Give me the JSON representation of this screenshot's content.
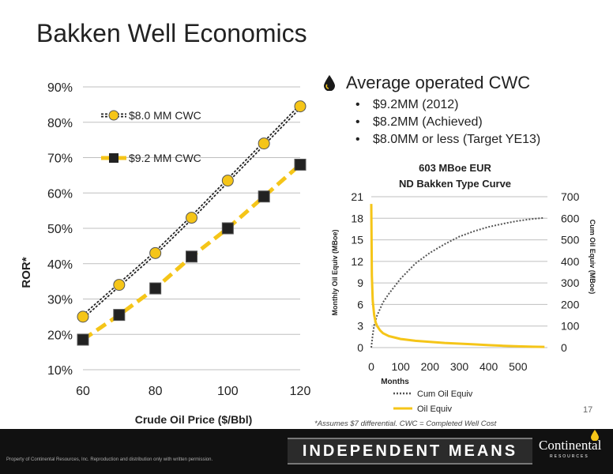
{
  "slide": {
    "title": "Bakken Well Economics",
    "page_number": "17",
    "footnote": "*Assumes $7 differential.  CWC = Completed Well Cost",
    "footer_banner": "INDEPENDENT MEANS",
    "copyright": "Property of Continental Resources, Inc. Reproduction and distribution only with written permission.",
    "logo_name": "Continental",
    "logo_sub": "RESOURCES"
  },
  "bullets": {
    "main": "Average operated CWC",
    "items": [
      "$9.2MM (2012)",
      "$8.2MM (Achieved)",
      "$8.0MM or less (Target YE13)"
    ]
  },
  "colors": {
    "accent": "#F5C518",
    "dark_series": "#222222",
    "grid": "#BFBFBF"
  },
  "chart_data": [
    {
      "type": "line",
      "title": "",
      "xlabel": "Crude Oil Price ($/Bbl)",
      "ylabel": "ROR*",
      "x": [
        60,
        70,
        80,
        90,
        100,
        110,
        120
      ],
      "xlim": [
        60,
        120
      ],
      "xticks": [
        "60",
        "80",
        "100",
        "120"
      ],
      "ylim": [
        10,
        90
      ],
      "yticks": [
        "10%",
        "20%",
        "30%",
        "40%",
        "50%",
        "60%",
        "70%",
        "80%",
        "90%"
      ],
      "grid": true,
      "legend_placement": "top-left",
      "series": [
        {
          "name": "$8.0 MM CWC",
          "values": [
            25,
            34,
            43,
            53,
            63.5,
            74,
            84.5
          ]
        },
        {
          "name": "$9.2 MM CWC",
          "values": [
            18.5,
            25.5,
            33,
            42,
            50,
            59,
            68
          ]
        }
      ]
    },
    {
      "type": "line",
      "title": "603 MBoe EUR",
      "subtitle": "ND Bakken Type Curve",
      "xlabel": "Months",
      "ylabel": "Monthly Oil Equiv (MBoe)",
      "y2label": "Cum Oil Equiv (MBoe)",
      "xlim": [
        0,
        600
      ],
      "xticks": [
        "0",
        "100",
        "200",
        "300",
        "400",
        "500"
      ],
      "ylim": [
        0,
        21
      ],
      "yticks": [
        "0",
        "3",
        "6",
        "9",
        "12",
        "15",
        "18",
        "21"
      ],
      "y2lim": [
        0,
        700
      ],
      "y2ticks": [
        "0",
        "100",
        "200",
        "300",
        "400",
        "500",
        "600",
        "700"
      ],
      "grid": true,
      "legend_placement": "bottom",
      "series": [
        {
          "name": "Cum Oil Equiv",
          "axis": "right",
          "x": [
            0,
            5,
            10,
            20,
            40,
            60,
            100,
            150,
            200,
            250,
            300,
            350,
            400,
            450,
            500,
            550,
            590
          ],
          "values": [
            0,
            60,
            105,
            150,
            210,
            250,
            320,
            390,
            440,
            480,
            515,
            540,
            560,
            575,
            588,
            597,
            602
          ]
        },
        {
          "name": "Oil Equiv",
          "axis": "left",
          "x": [
            0,
            2,
            5,
            10,
            15,
            20,
            30,
            40,
            60,
            80,
            100,
            150,
            200,
            250,
            300,
            350,
            400,
            450,
            500,
            550,
            590
          ],
          "values": [
            20,
            10,
            6.5,
            4.5,
            3.5,
            3.0,
            2.4,
            2.0,
            1.6,
            1.4,
            1.2,
            0.95,
            0.8,
            0.65,
            0.55,
            0.45,
            0.35,
            0.25,
            0.18,
            0.12,
            0.1
          ]
        }
      ]
    }
  ]
}
